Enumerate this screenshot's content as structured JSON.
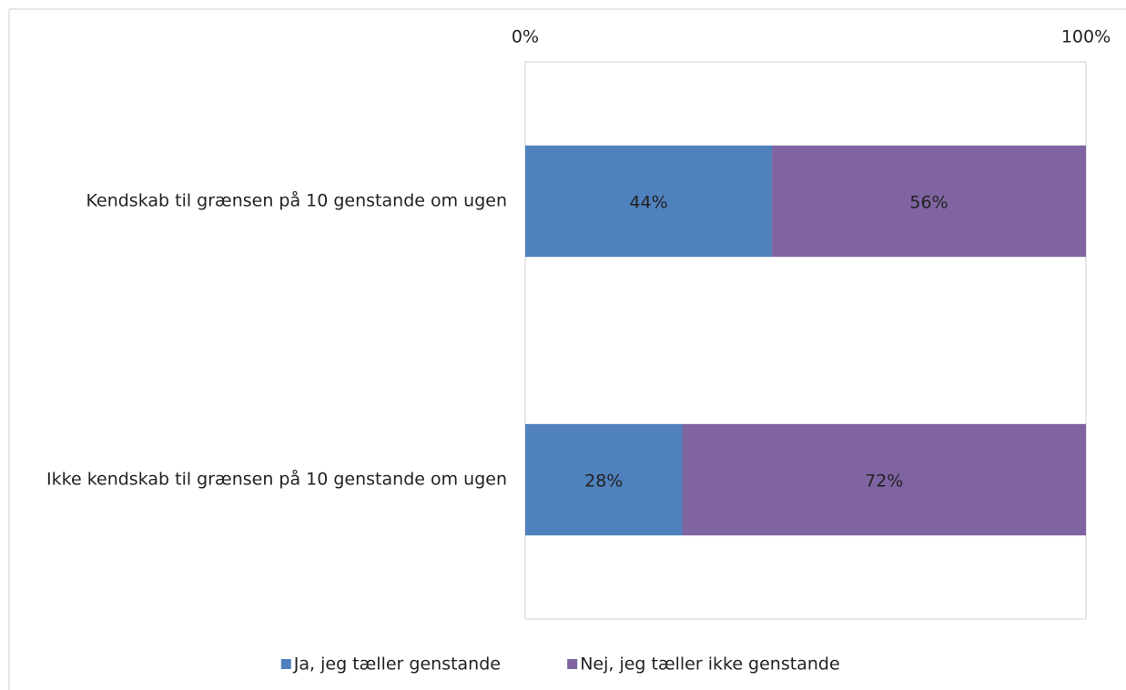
{
  "chart_data": {
    "type": "bar",
    "orientation": "horizontal",
    "stacked": true,
    "categories": [
      "Kendskab til grænsen på 10 genstande om ugen",
      "Ikke kendskab til grænsen på 10 genstande om ugen"
    ],
    "series": [
      {
        "name": "Ja, jeg tæller genstande",
        "color": "#4f81bd",
        "values": [
          44,
          28
        ],
        "value_labels": [
          "44%",
          "28%"
        ]
      },
      {
        "name": "Nej, jeg tæller ikke genstande",
        "color": "#8064a2",
        "values": [
          56,
          72
        ],
        "value_labels": [
          "56%",
          "72%"
        ]
      }
    ],
    "xlim": [
      0,
      100
    ],
    "xticks": [
      {
        "value": 0,
        "label": "0%"
      },
      {
        "value": 100,
        "label": "100%"
      }
    ],
    "grid": true,
    "legend": "bottom"
  }
}
